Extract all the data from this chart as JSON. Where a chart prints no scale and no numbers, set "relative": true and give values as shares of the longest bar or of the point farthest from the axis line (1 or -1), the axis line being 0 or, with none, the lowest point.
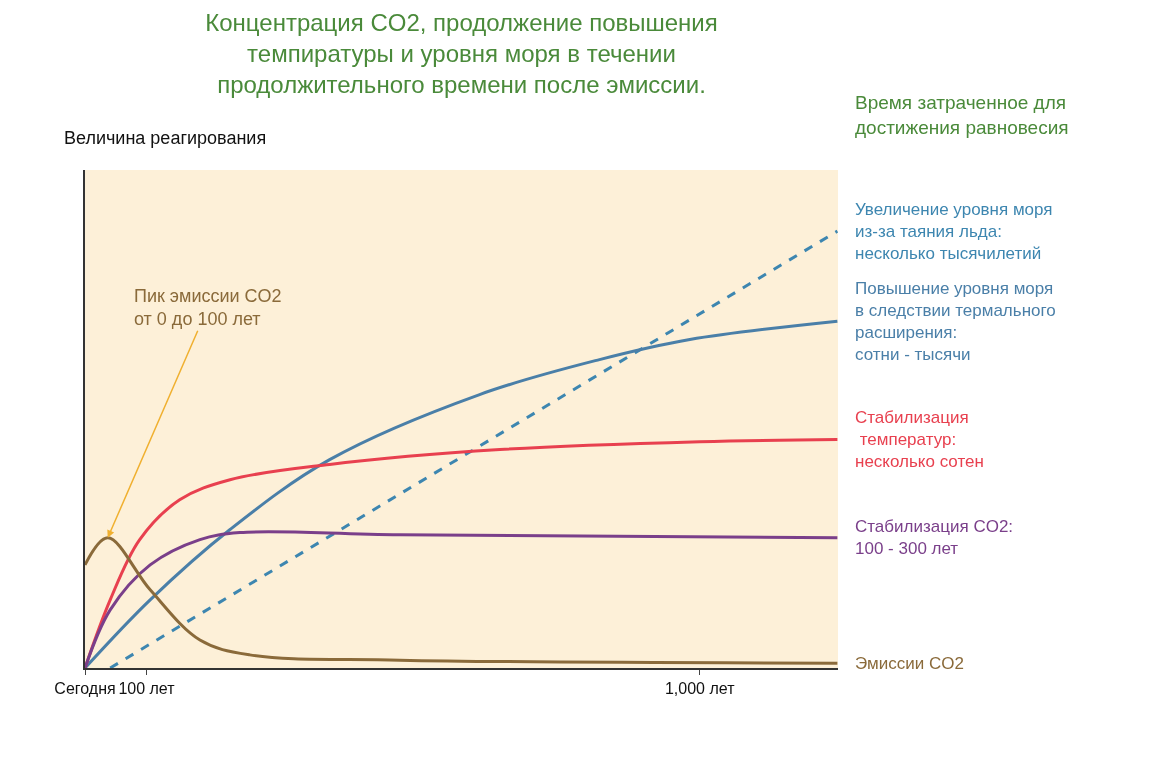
{
  "chart_data": {
    "type": "line",
    "relative": true,
    "title": "Концентрация CO2, продолжение повышения\nтемпиратуры и уровня моря в течении\nпродолжительного времени после эмиссии.",
    "ylabel": "Величина реагирования",
    "legend_title": "Время затраченное для\nдостижения равновесия",
    "xlim": [
      0,
      1225
    ],
    "xticks": [
      {
        "value": 0,
        "label": "Сегодня"
      },
      {
        "value": 100,
        "label": "100 лет"
      },
      {
        "value": 1000,
        "label": "1,000 лет"
      }
    ],
    "grid": false,
    "legend": false,
    "marker": "none",
    "series": [
      {
        "name": "Увеличение уровня моря\nиз-за таяния льда:\nнесколько тысячилетий",
        "color": "#3d86b0",
        "line_style": "dashed",
        "x": [
          41,
          1224
        ],
        "values": [
          0,
          1
        ]
      },
      {
        "name": "Повышение уровня моря\nв следствии термального\nрасширения:\nсотни - тысячи",
        "color": "#4a7fa8",
        "line_style": "solid",
        "x": [
          0,
          106,
          236,
          398,
          642,
          837,
          984,
          1224
        ],
        "values": [
          0,
          0.156,
          0.317,
          0.477,
          0.626,
          0.706,
          0.752,
          0.794
        ]
      },
      {
        "name": "Стабилизация\n температур:\nнесколько сотен",
        "color": "#e8404f",
        "line_style": "solid",
        "x": [
          0,
          41,
          89,
          154,
          236,
          398,
          675,
          1000,
          1224
        ],
        "values": [
          0,
          0.156,
          0.294,
          0.385,
          0.431,
          0.466,
          0.5,
          0.518,
          0.523
        ]
      },
      {
        "name": "Стабилизация CO2:\n100 - 300 лет",
        "color": "#7a3f8a",
        "line_style": "solid",
        "x": [
          0,
          41,
          106,
          187,
          252,
          512,
          1224
        ],
        "values": [
          0,
          0.133,
          0.236,
          0.294,
          0.31,
          0.305,
          0.298
        ]
      },
      {
        "name": "Эмиссии CO2",
        "color": "#8a6a3a",
        "line_style": "solid",
        "x": [
          0,
          37,
          106,
          187,
          268,
          512,
          1224
        ],
        "values": [
          0.236,
          0.298,
          0.179,
          0.064,
          0.03,
          0.018,
          0.011
        ]
      }
    ],
    "annotations": [
      {
        "text": "Пик эмиссии CO2\nот 0 до 100 лет",
        "x": 37,
        "y": 0.298
      }
    ]
  }
}
